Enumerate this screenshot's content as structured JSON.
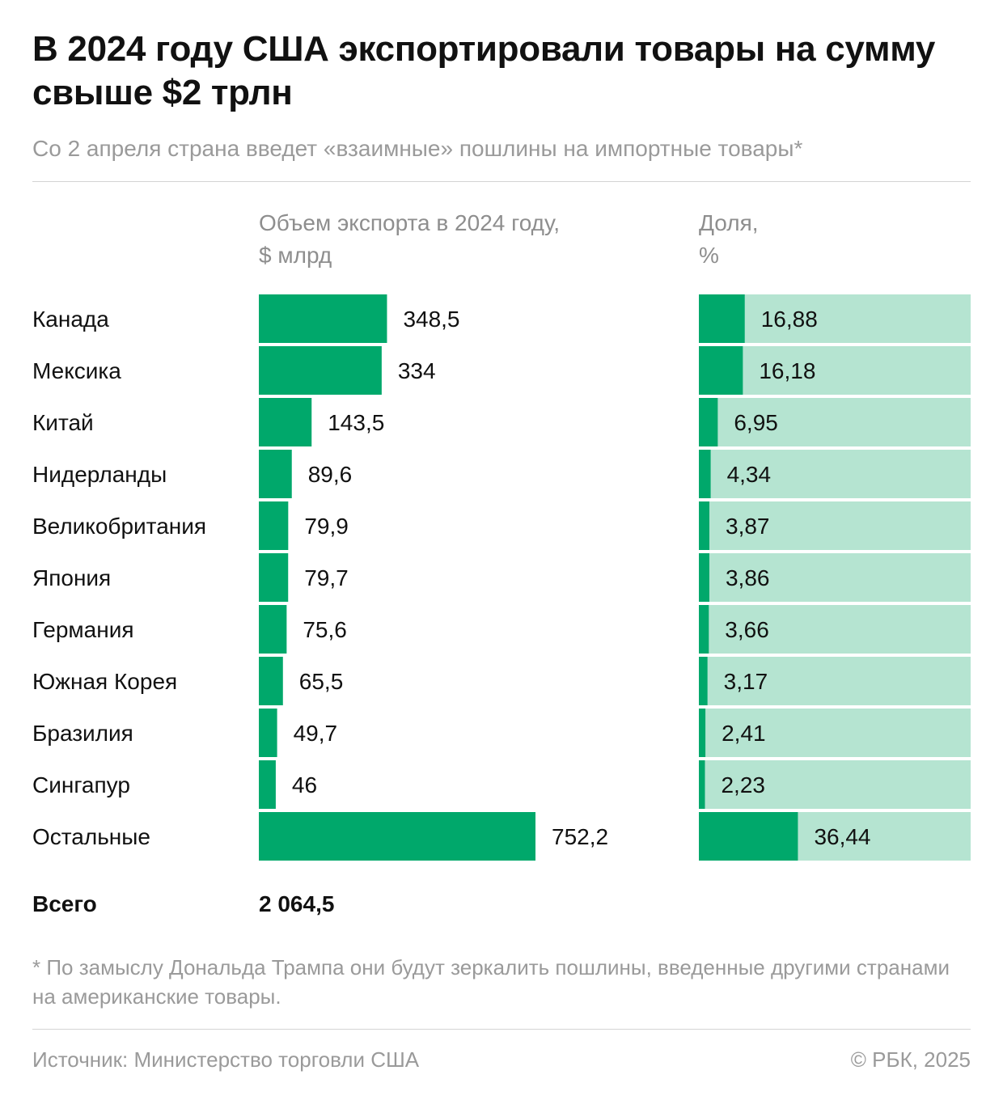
{
  "header": {
    "title": "В 2024 году США экспортировали товары на сумму свыше $2 трлн",
    "subtitle": "Со 2 апреля страна введет «взаимные» пошлины на импортные товары*"
  },
  "columns": {
    "export_line1": "Объем экспорта в 2024 году,",
    "export_line2": "$ млрд",
    "share_line1": "Доля,",
    "share_line2": "%"
  },
  "colors": {
    "bar": "#00a86b",
    "share_track": "#b5e4d1",
    "text": "#111111",
    "muted": "#9a9a9a"
  },
  "chart_data": {
    "type": "bar",
    "orientation": "horizontal",
    "categories": [
      "Канада",
      "Мексика",
      "Китай",
      "Нидерланды",
      "Великобритания",
      "Япония",
      "Германия",
      "Южная Корея",
      "Бразилия",
      "Сингапур",
      "Остальные"
    ],
    "series": [
      {
        "values": [
          348.5,
          334,
          143.5,
          89.6,
          79.9,
          79.7,
          75.6,
          65.5,
          49.7,
          46,
          752.2
        ],
        "labels": [
          "348,5",
          "334",
          "143,5",
          "89,6",
          "79,9",
          "79,7",
          "75,6",
          "65,5",
          "49,7",
          "46",
          "752,2"
        ]
      },
      {
        "values": [
          16.88,
          16.18,
          6.95,
          4.34,
          3.87,
          3.86,
          3.66,
          3.17,
          2.41,
          2.23,
          36.44
        ],
        "labels": [
          "16,88",
          "16,18",
          "6,95",
          "4,34",
          "3,87",
          "3,86",
          "3,66",
          "3,17",
          "2,41",
          "2,23",
          "36,44"
        ],
        "max": 100
      }
    ],
    "grid": false,
    "legend": "none"
  },
  "total": {
    "label": "Всего",
    "value": "2 064,5"
  },
  "footnote": "* По замыслу Дональда Трампа они будут зеркалить пошлины, введенные другими странами на американские товары.",
  "footer": {
    "source": "Источник: Министерство торговли США",
    "credit": "© РБК, 2025"
  }
}
